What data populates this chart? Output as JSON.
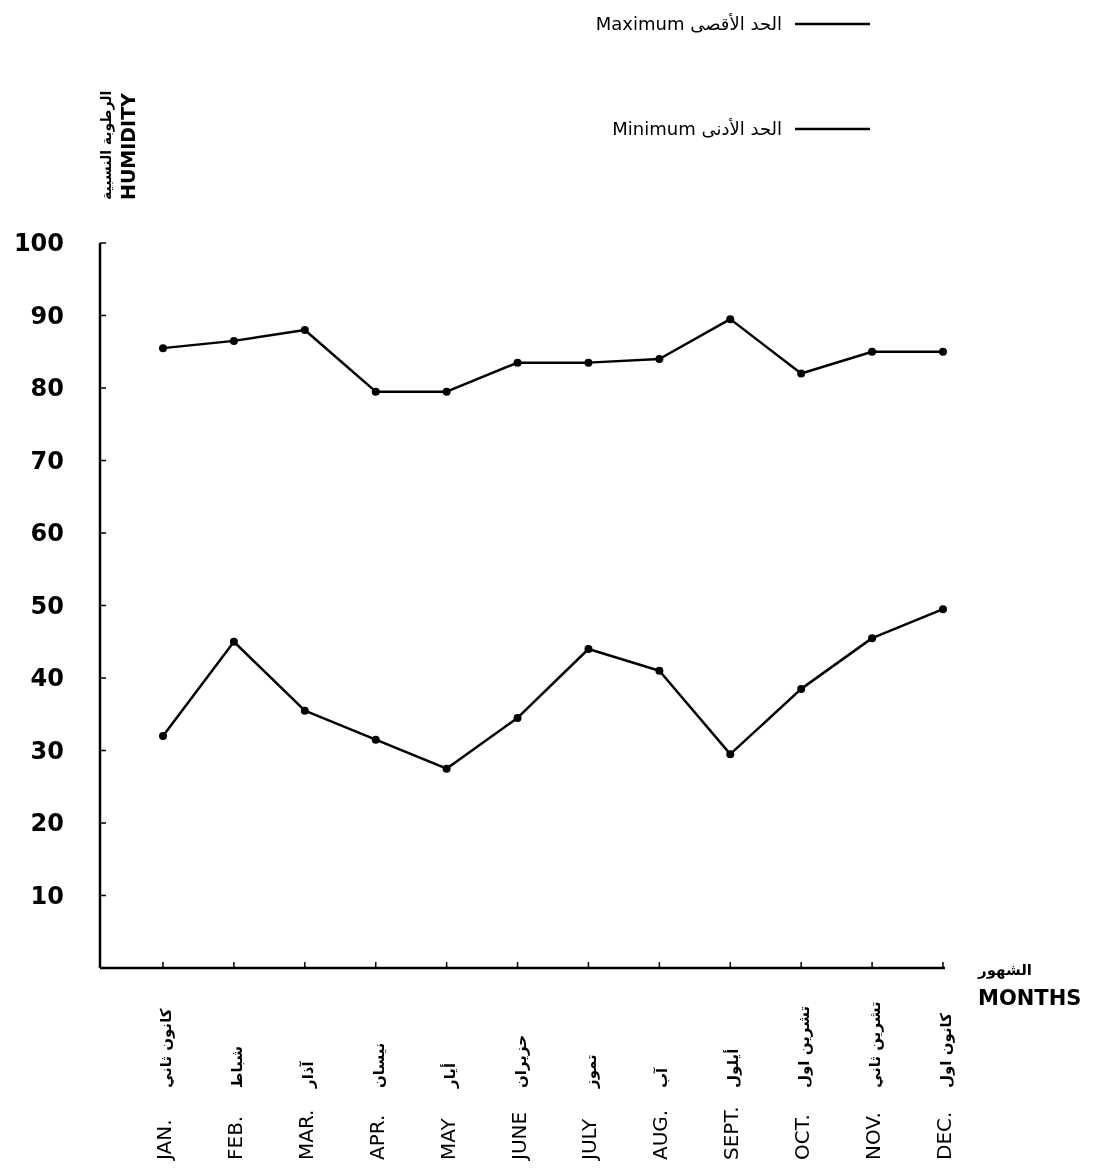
{
  "chart_data": {
    "type": "line",
    "ylabel": "الرطوبة النسبية\nHUMIDITY",
    "xlabel": "الشهور\nMONTHS",
    "categories": [
      "JAN.\nكانون ثاني",
      "FEB.\nشباط",
      "MAR.\nآذار",
      "APR.\nنيسان",
      "MAY\nأيار",
      "JUNE\nحزيران",
      "JULY\nتموز",
      "AUG.\nآب",
      "SEPT.\nأيلول",
      "OCT.\nتشرين اول",
      "NOV.\nتشرين ثاني",
      "DEC.\nكانون اول"
    ],
    "series": [
      {
        "name": "Maximum الحد الأقصى",
        "color": "#000000",
        "values": [
          85.5,
          86.5,
          88,
          79.5,
          79.5,
          83.5,
          83.5,
          84,
          89.5,
          82,
          85,
          85
        ]
      },
      {
        "name": "Minimum الحد الأدنى",
        "color": "#000000",
        "values": [
          32,
          45,
          35.5,
          31.5,
          27.5,
          34.5,
          44,
          41,
          29.5,
          38.5,
          45.5,
          49.5
        ]
      }
    ],
    "ylim": [
      0,
      100
    ],
    "yticks": [
      10,
      20,
      30,
      40,
      50,
      60,
      70,
      80,
      90,
      100
    ],
    "grid": false,
    "legend": "top right",
    "marker": "circle",
    "line_style": "solid"
  }
}
